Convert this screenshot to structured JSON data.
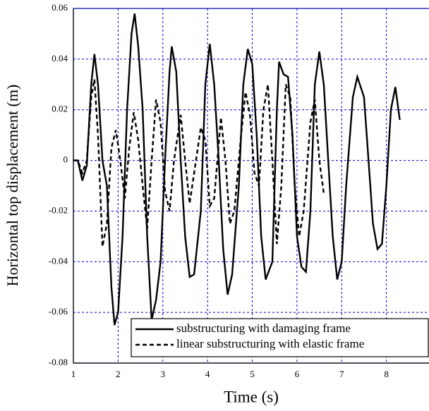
{
  "chart_data": {
    "type": "line",
    "xlabel": "Time (s)",
    "ylabel": "Horizontal top displacement (m)",
    "xlim": [
      1,
      9
    ],
    "xticks": [
      1,
      2,
      3,
      4,
      5,
      6,
      7,
      8,
      9
    ],
    "ylim": [
      -0.08,
      0.06
    ],
    "yticks": [
      -0.08,
      -0.06,
      -0.04,
      -0.02,
      0,
      0.02,
      0.04,
      0.06
    ],
    "grid": true,
    "legend": "lower right",
    "series": [
      {
        "name": "substructuring with damaging frame",
        "color": "#000000",
        "dash": "solid",
        "x": [
          1.0,
          1.1,
          1.2,
          1.3,
          1.4,
          1.47,
          1.55,
          1.65,
          1.75,
          1.85,
          1.92,
          2.0,
          2.1,
          2.2,
          2.3,
          2.37,
          2.45,
          2.55,
          2.65,
          2.75,
          2.85,
          2.95,
          3.05,
          3.15,
          3.2,
          3.3,
          3.4,
          3.5,
          3.6,
          3.7,
          3.85,
          3.95,
          4.05,
          4.15,
          4.25,
          4.35,
          4.45,
          4.55,
          4.7,
          4.8,
          4.9,
          5.0,
          5.1,
          5.2,
          5.3,
          5.45,
          5.55,
          5.6,
          5.7,
          5.8,
          5.9,
          6.0,
          6.1,
          6.2,
          6.3,
          6.4,
          6.5,
          6.6,
          6.7,
          6.8,
          6.9,
          7.0,
          7.1,
          7.25,
          7.35,
          7.5,
          7.6,
          7.7,
          7.8,
          7.9,
          8.0,
          8.1,
          8.2,
          8.3
        ],
        "values": [
          0,
          0,
          -0.008,
          -0.002,
          0.03,
          0.042,
          0.03,
          0,
          -0.01,
          -0.05,
          -0.065,
          -0.06,
          -0.03,
          0.02,
          0.05,
          0.058,
          0.045,
          0.02,
          -0.03,
          -0.063,
          -0.055,
          -0.04,
          0,
          0.035,
          0.045,
          0.035,
          0,
          -0.03,
          -0.046,
          -0.045,
          -0.02,
          0.03,
          0.046,
          0.03,
          0,
          -0.035,
          -0.053,
          -0.045,
          -0.01,
          0.03,
          0.044,
          0.038,
          0.01,
          -0.03,
          -0.047,
          -0.04,
          0.02,
          0.039,
          0.034,
          0.033,
          0.01,
          -0.03,
          -0.042,
          -0.044,
          -0.02,
          0.03,
          0.043,
          0.03,
          0,
          -0.03,
          -0.047,
          -0.04,
          -0.01,
          0.025,
          0.033,
          0.025,
          0,
          -0.025,
          -0.035,
          -0.033,
          -0.01,
          0.02,
          0.029,
          0.016
        ]
      },
      {
        "name": "linear substructuring with elastic frame",
        "color": "#000000",
        "dash": "dashed",
        "x": [
          1.0,
          1.1,
          1.2,
          1.3,
          1.4,
          1.47,
          1.55,
          1.65,
          1.75,
          1.85,
          1.95,
          2.05,
          2.15,
          2.25,
          2.35,
          2.45,
          2.55,
          2.65,
          2.75,
          2.85,
          2.95,
          3.05,
          3.15,
          3.25,
          3.4,
          3.5,
          3.6,
          3.7,
          3.85,
          3.95,
          4.05,
          4.15,
          4.3,
          4.4,
          4.5,
          4.6,
          4.75,
          4.85,
          4.95,
          5.05,
          5.15,
          5.25,
          5.35,
          5.45,
          5.55,
          5.65,
          5.75,
          5.85,
          5.95,
          6.05,
          6.15,
          6.3,
          6.4,
          6.5,
          6.6
        ],
        "values": [
          0,
          0,
          -0.005,
          0,
          0.025,
          0.032,
          0.01,
          -0.034,
          -0.025,
          0.005,
          0.012,
          0,
          -0.015,
          0.005,
          0.019,
          0.008,
          -0.01,
          -0.027,
          0,
          0.024,
          0.015,
          -0.012,
          -0.02,
          0,
          0.018,
          0,
          -0.017,
          -0.005,
          0.013,
          0.008,
          -0.018,
          -0.015,
          0.017,
          0,
          -0.025,
          -0.02,
          0.01,
          0.027,
          0.018,
          -0.005,
          -0.01,
          0.02,
          0.03,
          0,
          -0.033,
          -0.01,
          0.03,
          0.025,
          -0.01,
          -0.03,
          -0.02,
          0.015,
          0.024,
          0,
          -0.013
        ]
      }
    ]
  }
}
